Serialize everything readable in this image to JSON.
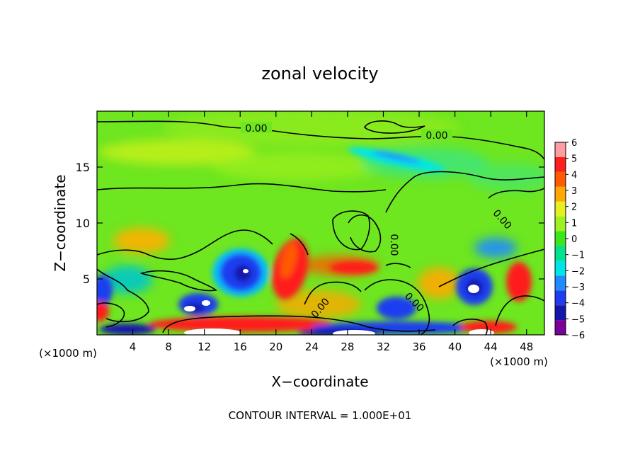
{
  "chart_data": {
    "type": "heatmap",
    "title": "zonal velocity",
    "xlabel": "X−coordinate",
    "ylabel": "Z−coordinate",
    "x_unit_left": "(×1000 m)",
    "x_unit_right": "(×1000 m)",
    "xlim": [
      0,
      50
    ],
    "ylim": [
      0,
      20
    ],
    "x_ticks": [
      4,
      8,
      12,
      16,
      20,
      24,
      28,
      32,
      36,
      40,
      44,
      48
    ],
    "x_tick_labels": [
      "4",
      "8",
      "12",
      "16",
      "20",
      "24",
      "28",
      "32",
      "36",
      "40",
      "44",
      "48"
    ],
    "y_ticks": [
      5,
      10,
      15
    ],
    "y_tick_labels": [
      "5",
      "10",
      "15"
    ],
    "colorbar": {
      "min": -6,
      "max": 6,
      "levels": [
        -6,
        -5,
        -4,
        -3,
        -2,
        -1,
        0,
        1,
        2,
        3,
        4,
        5,
        6
      ],
      "labels": [
        "−6",
        "−5",
        "−4",
        "−3",
        "−2",
        "−1",
        "0",
        "1",
        "2",
        "3",
        "4",
        "5",
        "6"
      ],
      "colors": [
        "#7a0099",
        "#1515a8",
        "#1e3cf0",
        "#1e8cff",
        "#00e6e6",
        "#00e38c",
        "#3ce61e",
        "#9ef01e",
        "#e6f01e",
        "#ffa800",
        "#ff5a00",
        "#ff1e1e",
        "#ff9ea0"
      ]
    },
    "contour_interval_text": "CONTOUR INTERVAL = 1.000E+01",
    "contour_labels": [
      "0.00",
      "0.00",
      "0.00",
      "0.00",
      "0.00",
      "0.00"
    ],
    "background_color": "#6ee620",
    "features": [
      {
        "kind": "jet",
        "x": 32,
        "z": 16.5,
        "value": -2.5
      },
      {
        "kind": "band",
        "x": 27,
        "z": 15.2,
        "value": -1.5
      },
      {
        "kind": "vortex",
        "x": 17,
        "z": 5.5,
        "value": -5.5
      },
      {
        "kind": "vortex",
        "x": 10,
        "z": 2.5,
        "value": -5
      },
      {
        "kind": "vortex",
        "x": 43.5,
        "z": 4.2,
        "value": -5
      },
      {
        "kind": "jet",
        "x": 22,
        "z": 5,
        "value": 4.5
      },
      {
        "kind": "jet",
        "x": 29,
        "z": 6,
        "value": 4
      },
      {
        "kind": "jet",
        "x": 46.5,
        "z": 5,
        "value": 4
      }
    ]
  }
}
